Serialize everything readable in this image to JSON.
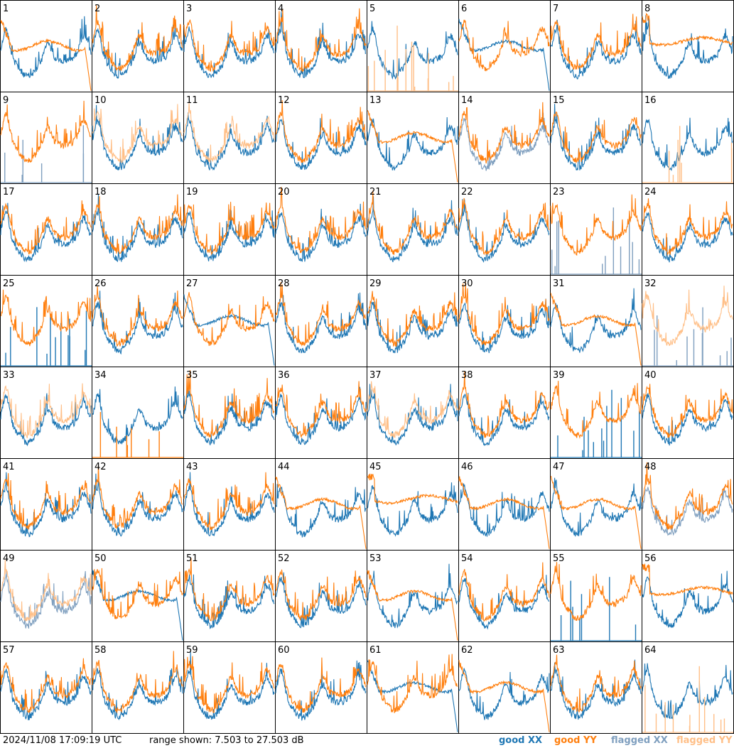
{
  "chart_data": {
    "type": "line",
    "panel_count": 64,
    "panel_labels": [
      "1",
      "2",
      "3",
      "4",
      "5",
      "6",
      "7",
      "8",
      "9",
      "10",
      "11",
      "12",
      "13",
      "14",
      "15",
      "16",
      "17",
      "18",
      "19",
      "20",
      "21",
      "22",
      "23",
      "24",
      "25",
      "26",
      "27",
      "28",
      "29",
      "30",
      "31",
      "32",
      "33",
      "34",
      "35",
      "36",
      "37",
      "38",
      "39",
      "40",
      "41",
      "42",
      "43",
      "44",
      "45",
      "46",
      "47",
      "48",
      "49",
      "50",
      "51",
      "52",
      "53",
      "54",
      "55",
      "56",
      "57",
      "58",
      "59",
      "60",
      "61",
      "62",
      "63",
      "64"
    ],
    "ylim": [
      7.503,
      27.503
    ],
    "yunit": "dB",
    "legend": {
      "placement": "bottom-right",
      "entries": [
        {
          "label": "good XX",
          "color": "#1f77b4"
        },
        {
          "label": "good YY",
          "color": "#ff7f0e"
        },
        {
          "label": "flagged XX",
          "color": "#7f9fbf"
        },
        {
          "label": "flagged YY",
          "color": "#ffbf87"
        }
      ]
    },
    "panels": [
      {
        "xx": "good",
        "yy": "good",
        "yy_shape": "drop"
      },
      {
        "xx": "good",
        "yy": "good"
      },
      {
        "xx": "good",
        "yy": "good"
      },
      {
        "xx": "good",
        "yy": "good"
      },
      {
        "xx": "good",
        "yy": "flagged",
        "yy_shape": "spikes"
      },
      {
        "xx": "good",
        "yy": "good",
        "xx_shape": "drop"
      },
      {
        "xx": "good",
        "yy": "good"
      },
      {
        "xx": "good",
        "yy": "good",
        "yy_shape": "flat"
      },
      {
        "xx": "flagged",
        "yy": "good",
        "xx_shape": "spikes"
      },
      {
        "xx": "good",
        "yy": "flagged"
      },
      {
        "xx": "good",
        "yy": "flagged"
      },
      {
        "xx": "good",
        "yy": "good"
      },
      {
        "xx": "good",
        "yy": "good",
        "yy_shape": "drop"
      },
      {
        "xx": "flagged",
        "yy": "good"
      },
      {
        "xx": "good",
        "yy": "good"
      },
      {
        "xx": "good",
        "yy": "flagged",
        "yy_shape": "spikes"
      },
      {
        "xx": "good",
        "yy": "good"
      },
      {
        "xx": "good",
        "yy": "good"
      },
      {
        "xx": "good",
        "yy": "good"
      },
      {
        "xx": "good",
        "yy": "good"
      },
      {
        "xx": "good",
        "yy": "good"
      },
      {
        "xx": "good",
        "yy": "good"
      },
      {
        "xx": "flagged",
        "yy": "good",
        "xx_shape": "spikes"
      },
      {
        "xx": "good",
        "yy": "good"
      },
      {
        "xx": "good",
        "yy": "good",
        "xx_shape": "spikes"
      },
      {
        "xx": "good",
        "yy": "good"
      },
      {
        "xx": "good",
        "yy": "good",
        "xx_shape": "drop"
      },
      {
        "xx": "good",
        "yy": "good"
      },
      {
        "xx": "good",
        "yy": "good"
      },
      {
        "xx": "good",
        "yy": "good"
      },
      {
        "xx": "good",
        "yy": "good",
        "yy_shape": "drop"
      },
      {
        "xx": "flagged",
        "yy": "flagged",
        "xx_shape": "spikes"
      },
      {
        "xx": "good",
        "yy": "flagged"
      },
      {
        "xx": "good",
        "yy": "good",
        "yy_shape": "spikes"
      },
      {
        "xx": "good",
        "yy": "good"
      },
      {
        "xx": "good",
        "yy": "good"
      },
      {
        "xx": "good",
        "yy": "flagged"
      },
      {
        "xx": "good",
        "yy": "good"
      },
      {
        "xx": "good",
        "yy": "good",
        "xx_shape": "spikes"
      },
      {
        "xx": "good",
        "yy": "good"
      },
      {
        "xx": "good",
        "yy": "good"
      },
      {
        "xx": "good",
        "yy": "good"
      },
      {
        "xx": "good",
        "yy": "good"
      },
      {
        "xx": "good",
        "yy": "good",
        "yy_shape": "drop"
      },
      {
        "xx": "good",
        "yy": "good",
        "yy_shape": "flat"
      },
      {
        "xx": "good",
        "yy": "good",
        "yy_shape": "drop"
      },
      {
        "xx": "good",
        "yy": "good",
        "yy_shape": "drop"
      },
      {
        "xx": "flagged",
        "yy": "good"
      },
      {
        "xx": "flagged",
        "yy": "flagged"
      },
      {
        "xx": "good",
        "yy": "good",
        "xx_shape": "drop"
      },
      {
        "xx": "good",
        "yy": "good"
      },
      {
        "xx": "good",
        "yy": "good"
      },
      {
        "xx": "good",
        "yy": "good",
        "yy_shape": "drop"
      },
      {
        "xx": "good",
        "yy": "good"
      },
      {
        "xx": "good",
        "yy": "good",
        "xx_shape": "spikes"
      },
      {
        "xx": "good",
        "yy": "good",
        "yy_shape": "flat"
      },
      {
        "xx": "good",
        "yy": "good"
      },
      {
        "xx": "good",
        "yy": "good"
      },
      {
        "xx": "good",
        "yy": "good"
      },
      {
        "xx": "good",
        "yy": "good"
      },
      {
        "xx": "good",
        "yy": "good",
        "xx_shape": "drop"
      },
      {
        "xx": "good",
        "yy": "good",
        "yy_shape": "drop"
      },
      {
        "xx": "good",
        "yy": "good"
      },
      {
        "xx": "good",
        "yy": "flagged",
        "yy_shape": "spikes"
      }
    ]
  },
  "footer": {
    "timestamp": "2024/11/08 17:09:19 UTC",
    "range_text": "range shown: 7.503 to 27.503 dB"
  }
}
